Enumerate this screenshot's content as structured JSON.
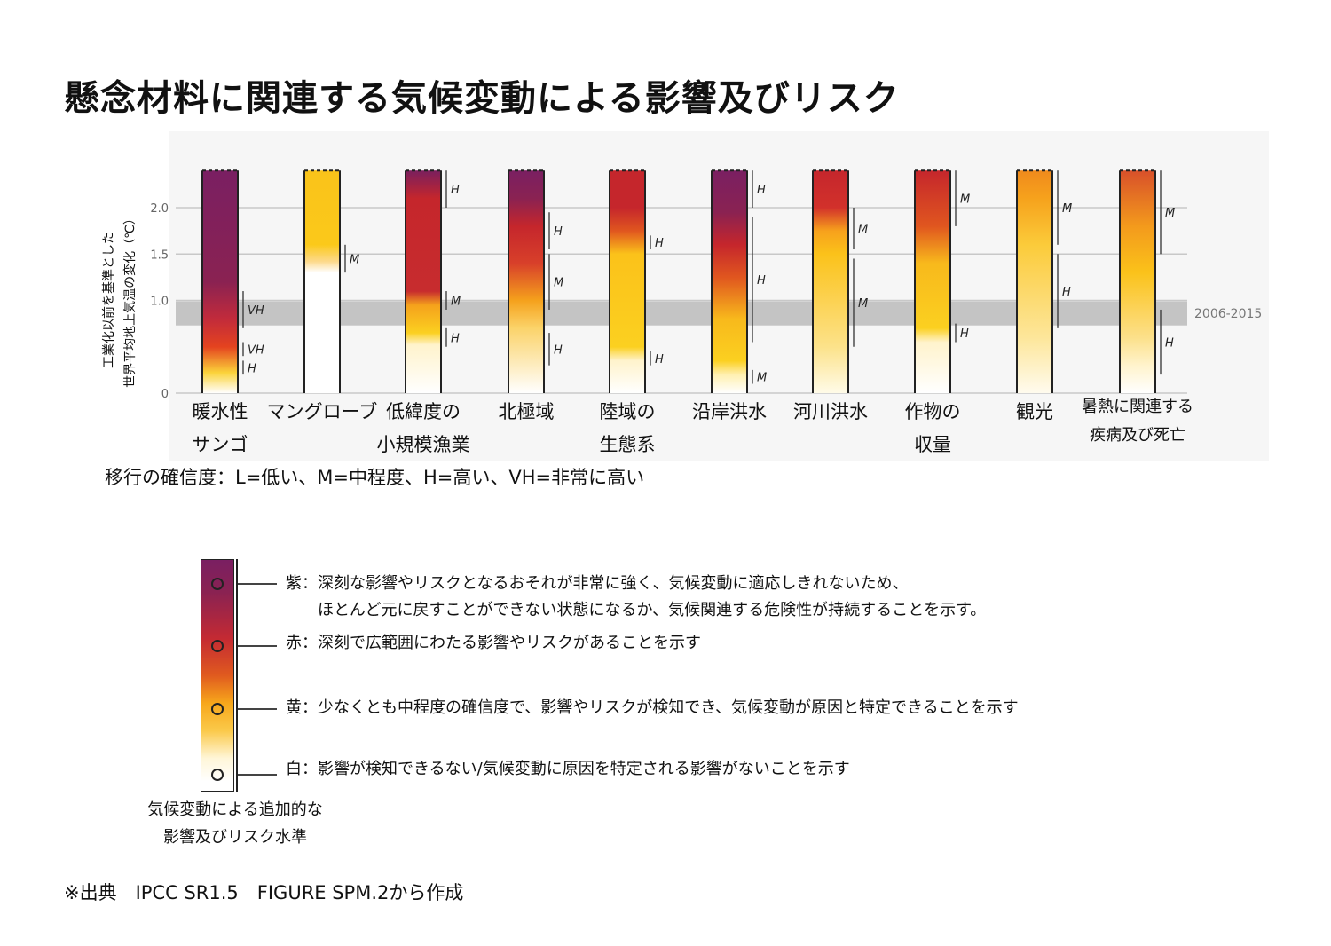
{
  "title": "懸念材料に関連する気候変動による影響及びリスク",
  "chart_data": {
    "type": "bar",
    "ylabel_line1": "工業化以前を基準とした",
    "ylabel_line2": "世界平均地上気温の変化（℃）",
    "ylim": [
      0,
      2.4
    ],
    "yticks": [
      "0",
      "1.0",
      "1.5",
      "2.0"
    ],
    "ytick_values": [
      0,
      1.0,
      1.5,
      2.0
    ],
    "reference_band": {
      "label": "2006-2015",
      "from": 0.73,
      "to": 0.99
    },
    "categories": [
      {
        "label": "暖水性\nサンゴ",
        "top": 2.4,
        "stops": [
          [
            0.0,
            "#ffffff"
          ],
          [
            0.22,
            "#fbd33a"
          ],
          [
            0.5,
            "#e4431f"
          ],
          [
            0.8,
            "#c22b3b"
          ],
          [
            1.2,
            "#8a2252"
          ],
          [
            2.4,
            "#7a1f62"
          ]
        ],
        "transitions": [
          {
            "from": 0.2,
            "to": 0.35,
            "level": "H"
          },
          {
            "from": 0.4,
            "to": 0.55,
            "level": "VH"
          },
          {
            "from": 0.7,
            "to": 1.1,
            "level": "VH"
          }
        ]
      },
      {
        "label": "マングローブ",
        "top": 2.4,
        "stops": [
          [
            0.0,
            "#ffffff"
          ],
          [
            1.3,
            "#ffffff"
          ],
          [
            1.42,
            "#fdd98a"
          ],
          [
            1.6,
            "#fbc91a"
          ],
          [
            2.4,
            "#fac31a"
          ]
        ],
        "transitions": [
          {
            "from": 1.3,
            "to": 1.6,
            "level": "M"
          }
        ]
      },
      {
        "label": "低緯度の\n小規模漁業",
        "top": 2.4,
        "stops": [
          [
            0.0,
            "#ffffff"
          ],
          [
            0.52,
            "#fff3cc"
          ],
          [
            0.65,
            "#fbd020"
          ],
          [
            0.95,
            "#f5a11c"
          ],
          [
            1.1,
            "#c72c2e"
          ],
          [
            2.1,
            "#c5262c"
          ],
          [
            2.4,
            "#7a1f5e"
          ]
        ],
        "transitions": [
          {
            "from": 0.5,
            "to": 0.7,
            "level": "H"
          },
          {
            "from": 0.9,
            "to": 1.1,
            "level": "M"
          },
          {
            "from": 2.0,
            "to": 2.4,
            "level": "H"
          }
        ]
      },
      {
        "label": "北極域",
        "top": 2.4,
        "stops": [
          [
            0.0,
            "#ffffff"
          ],
          [
            0.7,
            "#fbd36a"
          ],
          [
            1.0,
            "#f5a11c"
          ],
          [
            1.4,
            "#d8402a"
          ],
          [
            1.8,
            "#c5262c"
          ],
          [
            2.1,
            "#8a2252"
          ],
          [
            2.4,
            "#7a1f62"
          ]
        ],
        "transitions": [
          {
            "from": 0.3,
            "to": 0.65,
            "level": "H"
          },
          {
            "from": 0.9,
            "to": 1.5,
            "level": "M"
          },
          {
            "from": 1.55,
            "to": 1.95,
            "level": "H"
          }
        ]
      },
      {
        "label": "陸域の\n生態系",
        "top": 2.4,
        "stops": [
          [
            0.0,
            "#ffffff"
          ],
          [
            0.35,
            "#fff3cc"
          ],
          [
            0.5,
            "#fbd020"
          ],
          [
            1.5,
            "#fbc21a"
          ],
          [
            1.75,
            "#e0561f"
          ],
          [
            2.0,
            "#c5262c"
          ],
          [
            2.4,
            "#c5262c"
          ]
        ],
        "transitions": [
          {
            "from": 0.3,
            "to": 0.45,
            "level": "H"
          },
          {
            "from": 1.55,
            "to": 1.7,
            "level": "H"
          }
        ]
      },
      {
        "label": "沿岸洪水",
        "top": 2.4,
        "stops": [
          [
            0.0,
            "#ffffff"
          ],
          [
            0.2,
            "#fff0b0"
          ],
          [
            0.35,
            "#fbd020"
          ],
          [
            0.8,
            "#f8b91c"
          ],
          [
            1.25,
            "#e0561f"
          ],
          [
            1.6,
            "#c5262c"
          ],
          [
            1.95,
            "#8a2252"
          ],
          [
            2.4,
            "#7a1f62"
          ]
        ],
        "transitions": [
          {
            "from": 0.1,
            "to": 0.25,
            "level": "M"
          },
          {
            "from": 0.55,
            "to": 1.9,
            "level": "H"
          },
          {
            "from": 2.0,
            "to": 2.4,
            "level": "H"
          }
        ]
      },
      {
        "label": "河川洪水",
        "top": 2.4,
        "stops": [
          [
            0.0,
            "#fffbe8"
          ],
          [
            0.5,
            "#fce28a"
          ],
          [
            1.5,
            "#fbc21a"
          ],
          [
            1.75,
            "#f7a11c"
          ],
          [
            2.0,
            "#d2312b"
          ],
          [
            2.4,
            "#c5262c"
          ]
        ],
        "transitions": [
          {
            "from": 0.5,
            "to": 1.45,
            "level": "M"
          },
          {
            "from": 1.55,
            "to": 2.0,
            "level": "M"
          }
        ]
      },
      {
        "label": "作物の\n収量",
        "top": 2.4,
        "stops": [
          [
            0.0,
            "#ffffff"
          ],
          [
            0.55,
            "#fff3cc"
          ],
          [
            0.7,
            "#fbd020"
          ],
          [
            1.4,
            "#f8b91c"
          ],
          [
            1.8,
            "#e0561f"
          ],
          [
            2.4,
            "#c5262c"
          ]
        ],
        "transitions": [
          {
            "from": 0.55,
            "to": 0.75,
            "level": "H"
          },
          {
            "from": 1.8,
            "to": 2.4,
            "level": "M"
          }
        ]
      },
      {
        "label": "観光",
        "top": 2.4,
        "stops": [
          [
            0.0,
            "#fffbee"
          ],
          [
            0.6,
            "#fde69a"
          ],
          [
            1.6,
            "#fbcb3a"
          ],
          [
            2.1,
            "#f6a21c"
          ],
          [
            2.4,
            "#f08a1c"
          ]
        ],
        "transitions": [
          {
            "from": 0.7,
            "to": 1.5,
            "level": "H"
          },
          {
            "from": 1.6,
            "to": 2.4,
            "level": "M"
          }
        ]
      },
      {
        "label": "暑熱に関連する\n疾病及び死亡",
        "top": 2.4,
        "stops": [
          [
            0.0,
            "#ffffff"
          ],
          [
            0.3,
            "#fff3cc"
          ],
          [
            0.6,
            "#fce08a"
          ],
          [
            1.3,
            "#fbc21a"
          ],
          [
            1.8,
            "#f39a1c"
          ],
          [
            2.4,
            "#d8502a"
          ]
        ],
        "transitions": [
          {
            "from": 0.2,
            "to": 0.9,
            "level": "H"
          },
          {
            "from": 1.5,
            "to": 2.4,
            "level": "M"
          }
        ]
      }
    ]
  },
  "confidence_note": "移行の確信度：L=低い、M=中程度、H=高い、VH=非常に高い",
  "legend": {
    "items": [
      {
        "lines": [
          "紫：深刻な影響やリスクとなるおそれが非常に強く、気候変動に適応しきれないため、",
          "　　ほとんど元に戻すことができない状態になるか、気候関連する危険性が持続することを示す。"
        ]
      },
      {
        "lines": [
          "赤：深刻で広範囲にわたる影響やリスクがあることを示す"
        ]
      },
      {
        "lines": [
          "黄：少なくとも中程度の確信度で、影響やリスクが検知でき、気候変動が原因と特定できることを示す"
        ]
      },
      {
        "lines": [
          "白：影響が検知できるない/気候変動に原因を特定される影響がないことを示す"
        ]
      }
    ],
    "caption": "気候変動による追加的な\n影響及びリスク水準"
  },
  "source": "※出典　IPCC SR1.5　FIGURE SPM.2から作成"
}
